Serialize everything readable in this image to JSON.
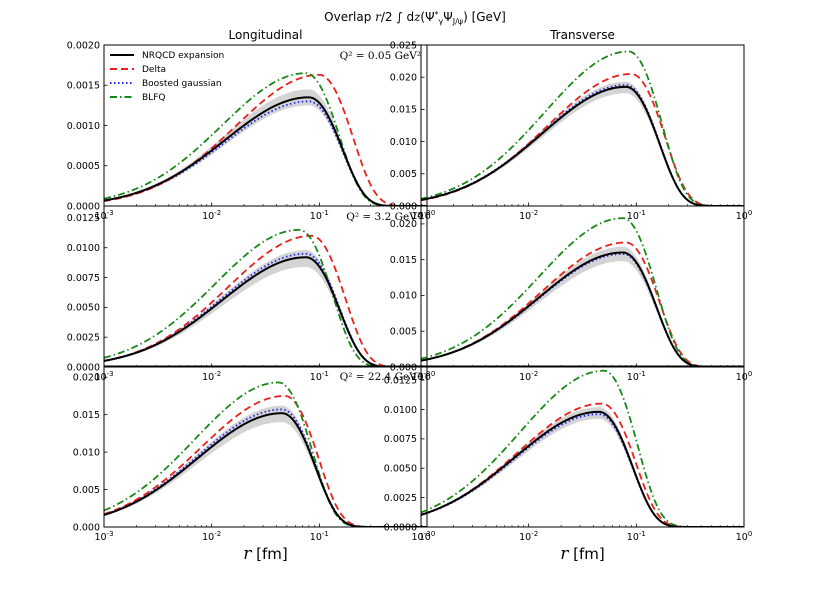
{
  "figure_title": "Overlap r/2 ∫ dz(Ψ*γ ΨJ/ψ) [GeV]",
  "chart_data": {
    "type": "line",
    "xscale": "log",
    "xlim": [
      0.001,
      1
    ],
    "xticks": [
      0.001,
      0.01,
      0.1,
      1
    ],
    "xtick_labels": [
      "10^-3",
      "10^-2",
      "10^-1",
      "10^0"
    ],
    "xlabel": "r [fm]",
    "column_titles": [
      "Longitudinal",
      "Transverse"
    ],
    "legend": {
      "location": "top-left of first panel",
      "entries": [
        {
          "key": "nrqcd",
          "label": "NRQCD expansion",
          "color": "#000000",
          "dash": "solid"
        },
        {
          "key": "delta",
          "label": "Delta",
          "color": "#e8211c",
          "dash": "dashed"
        },
        {
          "key": "gauss",
          "label": "Boosted gaussian",
          "color": "#2424e8",
          "dash": "dotted"
        },
        {
          "key": "blfq",
          "label": "BLFQ",
          "color": "#178817",
          "dash": "dashdot"
        }
      ]
    },
    "band": {
      "description": "uncertainty band of NRQCD expansion",
      "color": "#cccccc"
    },
    "panels": [
      {
        "row": 0,
        "col": 0,
        "annotation": "Q² = 0.05 GeV²",
        "ylim": [
          0,
          0.002
        ],
        "yticks": [
          0,
          0.0005,
          0.001,
          0.0015,
          0.002
        ],
        "ytick_labels": [
          "0.0000",
          "0.0005",
          "0.0010",
          "0.0015",
          "0.0020"
        ],
        "peaks": {
          "nrqcd": [
            0.08,
            0.00135
          ],
          "delta": [
            0.1,
            0.00163
          ],
          "gauss": [
            0.08,
            0.0013
          ],
          "blfq": [
            0.075,
            0.00165
          ]
        },
        "band_peak": [
          0.00125,
          0.00145
        ]
      },
      {
        "row": 0,
        "col": 1,
        "annotation": "",
        "ylim": [
          0,
          0.025
        ],
        "yticks": [
          0,
          0.005,
          0.01,
          0.015,
          0.02,
          0.025
        ],
        "ytick_labels": [
          "0.000",
          "0.005",
          "0.010",
          "0.015",
          "0.020",
          "0.025"
        ],
        "peaks": {
          "nrqcd": [
            0.08,
            0.0185
          ],
          "delta": [
            0.09,
            0.0205
          ],
          "gauss": [
            0.08,
            0.0188
          ],
          "blfq": [
            0.085,
            0.024
          ]
        },
        "band_peak": [
          0.0175,
          0.0193
        ]
      },
      {
        "row": 1,
        "col": 0,
        "annotation": "Q² = 3.2 GeV²",
        "ylim": [
          0,
          0.0135
        ],
        "yticks": [
          0,
          0.0025,
          0.005,
          0.0075,
          0.01,
          0.0125
        ],
        "ytick_labels": [
          "0.0000",
          "0.0025",
          "0.0050",
          "0.0075",
          "0.0100",
          "0.0125"
        ],
        "peaks": {
          "nrqcd": [
            0.075,
            0.0092
          ],
          "delta": [
            0.085,
            0.011
          ],
          "gauss": [
            0.075,
            0.0095
          ],
          "blfq": [
            0.065,
            0.0115
          ]
        },
        "band_peak": [
          0.0084,
          0.0098
        ]
      },
      {
        "row": 1,
        "col": 1,
        "annotation": "",
        "ylim": [
          0,
          0.0225
        ],
        "yticks": [
          0,
          0.005,
          0.01,
          0.015,
          0.02
        ],
        "ytick_labels": [
          "0.000",
          "0.005",
          "0.010",
          "0.015",
          "0.020"
        ],
        "peaks": {
          "nrqcd": [
            0.075,
            0.016
          ],
          "delta": [
            0.08,
            0.0174
          ],
          "gauss": [
            0.075,
            0.0158
          ],
          "blfq": [
            0.075,
            0.0208
          ]
        },
        "band_peak": [
          0.0148,
          0.0168
        ]
      },
      {
        "row": 2,
        "col": 0,
        "annotation": "Q² = 22.4 GeV²",
        "ylim": [
          0,
          0.0215
        ],
        "yticks": [
          0,
          0.005,
          0.01,
          0.015,
          0.02
        ],
        "ytick_labels": [
          "0.000",
          "0.005",
          "0.010",
          "0.015",
          "0.020"
        ],
        "peaks": {
          "nrqcd": [
            0.045,
            0.0152
          ],
          "delta": [
            0.048,
            0.0175
          ],
          "gauss": [
            0.045,
            0.0157
          ],
          "blfq": [
            0.042,
            0.0193
          ]
        },
        "band_peak": [
          0.014,
          0.0162
        ]
      },
      {
        "row": 2,
        "col": 1,
        "annotation": "",
        "ylim": [
          0,
          0.0137
        ],
        "yticks": [
          0,
          0.0025,
          0.005,
          0.0075,
          0.01,
          0.0125
        ],
        "ytick_labels": [
          "0.0000",
          "0.0025",
          "0.0050",
          "0.0075",
          "0.0100",
          "0.0125"
        ],
        "peaks": {
          "nrqcd": [
            0.045,
            0.0098
          ],
          "delta": [
            0.048,
            0.0105
          ],
          "gauss": [
            0.045,
            0.0096
          ],
          "blfq": [
            0.05,
            0.0133
          ]
        },
        "band_peak": [
          0.0092,
          0.0102
        ]
      }
    ]
  }
}
